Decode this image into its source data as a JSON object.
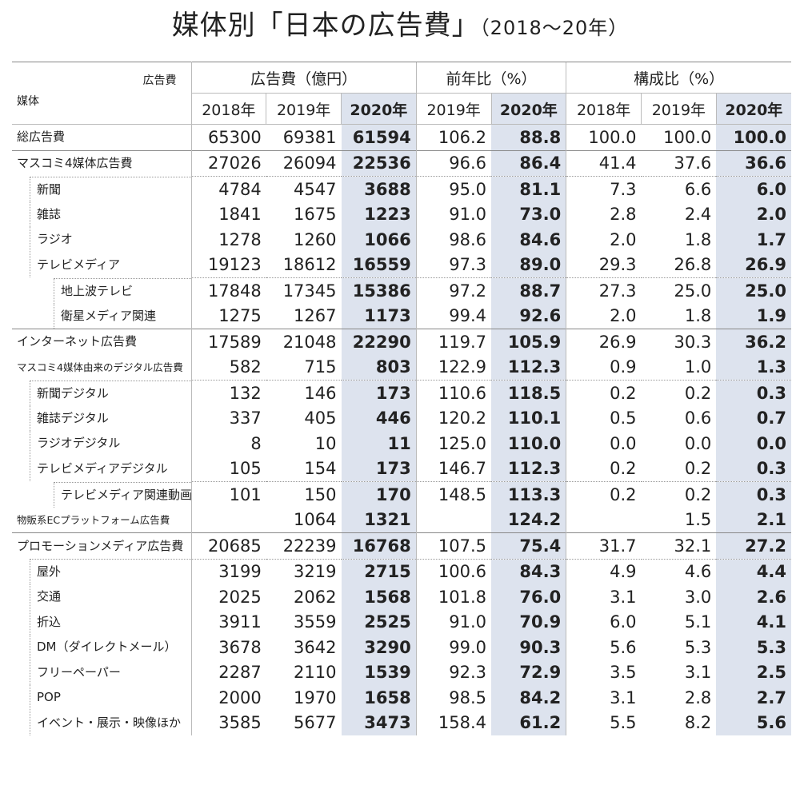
{
  "title": {
    "main": "媒体別「日本の広告費」",
    "sub": "（2018～20年）"
  },
  "header": {
    "corner_top": "広告費",
    "corner_bottom": "媒体",
    "groups": [
      "広告費（億円）",
      "前年比（%）",
      "構成比（%）"
    ],
    "years": [
      "2018年",
      "2019年",
      "2020年",
      "2019年",
      "2020年",
      "2018年",
      "2019年",
      "2020年"
    ]
  },
  "rows": [
    {
      "label": "総広告費",
      "level": 0,
      "vals": [
        "65300",
        "69381",
        "61594",
        "106.2",
        "88.8",
        "100.0",
        "100.0",
        "100.0"
      ]
    },
    {
      "label": "マスコミ4媒体広告費",
      "level": 0,
      "vals": [
        "27026",
        "26094",
        "22536",
        "96.6",
        "86.4",
        "41.4",
        "37.6",
        "36.6"
      ]
    },
    {
      "label": "新聞",
      "level": 1,
      "vals": [
        "4784",
        "4547",
        "3688",
        "95.0",
        "81.1",
        "7.3",
        "6.6",
        "6.0"
      ]
    },
    {
      "label": "雑誌",
      "level": 1,
      "vals": [
        "1841",
        "1675",
        "1223",
        "91.0",
        "73.0",
        "2.8",
        "2.4",
        "2.0"
      ]
    },
    {
      "label": "ラジオ",
      "level": 1,
      "vals": [
        "1278",
        "1260",
        "1066",
        "98.6",
        "84.6",
        "2.0",
        "1.8",
        "1.7"
      ]
    },
    {
      "label": "テレビメディア",
      "level": 1,
      "vals": [
        "19123",
        "18612",
        "16559",
        "97.3",
        "89.0",
        "29.3",
        "26.8",
        "26.9"
      ]
    },
    {
      "label": "地上波テレビ",
      "level": 2,
      "vals": [
        "17848",
        "17345",
        "15386",
        "97.2",
        "88.7",
        "27.3",
        "25.0",
        "25.0"
      ]
    },
    {
      "label": "衛星メディア関連",
      "level": 2,
      "vals": [
        "1275",
        "1267",
        "1173",
        "99.4",
        "92.6",
        "2.0",
        "1.8",
        "1.9"
      ]
    },
    {
      "label": "インターネット広告費",
      "level": 0,
      "vals": [
        "17589",
        "21048",
        "22290",
        "119.7",
        "105.9",
        "26.9",
        "30.3",
        "36.2"
      ]
    },
    {
      "label": "マスコミ4媒体由来のデジタル広告費",
      "level": 0,
      "vals": [
        "582",
        "715",
        "803",
        "122.9",
        "112.3",
        "0.9",
        "1.0",
        "1.3"
      ]
    },
    {
      "label": "新聞デジタル",
      "level": 1,
      "vals": [
        "132",
        "146",
        "173",
        "110.6",
        "118.5",
        "0.2",
        "0.2",
        "0.3"
      ]
    },
    {
      "label": "雑誌デジタル",
      "level": 1,
      "vals": [
        "337",
        "405",
        "446",
        "120.2",
        "110.1",
        "0.5",
        "0.6",
        "0.7"
      ]
    },
    {
      "label": "ラジオデジタル",
      "level": 1,
      "vals": [
        "8",
        "10",
        "11",
        "125.0",
        "110.0",
        "0.0",
        "0.0",
        "0.0"
      ]
    },
    {
      "label": "テレビメディアデジタル",
      "level": 1,
      "vals": [
        "105",
        "154",
        "173",
        "146.7",
        "112.3",
        "0.2",
        "0.2",
        "0.3"
      ]
    },
    {
      "label": "テレビメディア関連動画広告",
      "level": 2,
      "vals": [
        "101",
        "150",
        "170",
        "148.5",
        "113.3",
        "0.2",
        "0.2",
        "0.3"
      ]
    },
    {
      "label": "物販系ECプラットフォーム広告費",
      "level": 0,
      "vals": [
        "",
        "1064",
        "1321",
        "",
        "124.2",
        "",
        "1.5",
        "2.1"
      ]
    },
    {
      "label": "プロモーションメディア広告費",
      "level": 0,
      "vals": [
        "20685",
        "22239",
        "16768",
        "107.5",
        "75.4",
        "31.7",
        "32.1",
        "27.2"
      ]
    },
    {
      "label": "屋外",
      "level": 1,
      "vals": [
        "3199",
        "3219",
        "2715",
        "100.6",
        "84.3",
        "4.9",
        "4.6",
        "4.4"
      ]
    },
    {
      "label": "交通",
      "level": 1,
      "vals": [
        "2025",
        "2062",
        "1568",
        "101.8",
        "76.0",
        "3.1",
        "3.0",
        "2.6"
      ]
    },
    {
      "label": "折込",
      "level": 1,
      "vals": [
        "3911",
        "3559",
        "2525",
        "91.0",
        "70.9",
        "6.0",
        "5.1",
        "4.1"
      ]
    },
    {
      "label": "DM（ダイレクトメール）",
      "level": 1,
      "vals": [
        "3678",
        "3642",
        "3290",
        "99.0",
        "90.3",
        "5.6",
        "5.3",
        "5.3"
      ]
    },
    {
      "label": "フリーペーパー",
      "level": 1,
      "vals": [
        "2287",
        "2110",
        "1539",
        "92.3",
        "72.9",
        "3.5",
        "3.1",
        "2.5"
      ]
    },
    {
      "label": "POP",
      "level": 1,
      "vals": [
        "2000",
        "1970",
        "1658",
        "98.5",
        "84.2",
        "3.1",
        "2.8",
        "2.7"
      ]
    },
    {
      "label": "イベント・展示・映像ほか",
      "level": 1,
      "vals": [
        "3585",
        "5677",
        "3473",
        "158.4",
        "61.2",
        "5.5",
        "8.2",
        "5.6"
      ]
    }
  ]
}
